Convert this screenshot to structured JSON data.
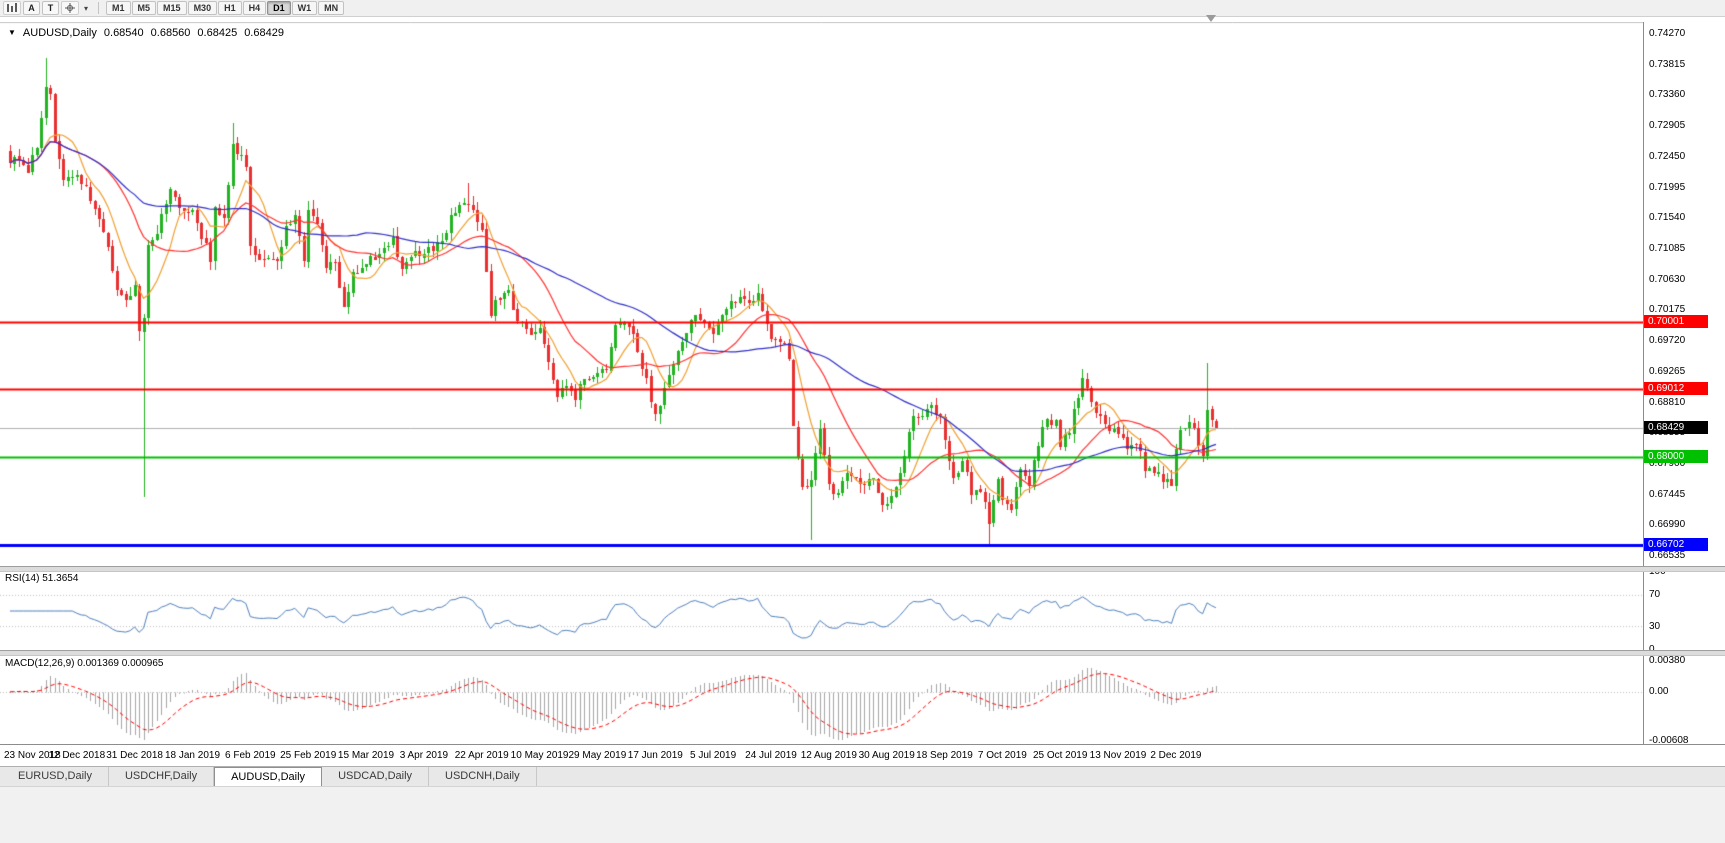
{
  "icons": {
    "collapse_glyph": "▼",
    "dropdown_glyph": "▾"
  },
  "toolbar": {
    "button_a": "A",
    "button_t": "T",
    "timeframes": [
      "M1",
      "M5",
      "M15",
      "M30",
      "H1",
      "H4",
      "D1",
      "W1",
      "MN"
    ],
    "active_timeframe": "D1"
  },
  "chart_header": {
    "symbol": "AUDUSD,Daily",
    "open": "0.68540",
    "high": "0.68560",
    "low": "0.68425",
    "close": "0.68429"
  },
  "price_axis": {
    "labels": [
      "0.74270",
      "0.73815",
      "0.73360",
      "0.72905",
      "0.72450",
      "0.71995",
      "0.71540",
      "0.71085",
      "0.70630",
      "0.70175",
      "0.69720",
      "0.69265",
      "0.68810",
      "0.68355",
      "0.67900",
      "0.67445",
      "0.66990",
      "0.66535"
    ]
  },
  "levels": [
    {
      "price": 0.70001,
      "text": "0.70001",
      "color": "#FF0000",
      "width": 2
    },
    {
      "price": 0.69012,
      "text": "0.69012",
      "color": "#FF0000",
      "width": 2
    },
    {
      "price": 0.68,
      "text": "0.68000",
      "color": "#00C000",
      "width": 2
    },
    {
      "price": 0.66702,
      "text": "0.66702",
      "color": "#0000FF",
      "width": 3
    }
  ],
  "current_price": {
    "price": 0.68429,
    "text": "0.68429",
    "bg": "#000000"
  },
  "rsi_panel": {
    "label": "RSI(14) 51.3654",
    "value": 51.3654,
    "color": "#4F81BD",
    "axis": [
      {
        "v": 100,
        "t": "100"
      },
      {
        "v": 70,
        "t": "70"
      },
      {
        "v": 30,
        "t": "30"
      },
      {
        "v": 0,
        "t": "0"
      }
    ]
  },
  "macd_panel": {
    "label": "MACD(12,26,9) 0.001369 0.000965",
    "macd_value": 0.001369,
    "signal_value": 0.000965,
    "hist_color": "#A6A6A6",
    "signal_color": "#FF0000",
    "axis": [
      {
        "v": 0.0038,
        "t": "0.00380"
      },
      {
        "v": 0,
        "t": "0.00"
      },
      {
        "v": -0.00608,
        "t": "-0.00608"
      }
    ]
  },
  "x_axis": {
    "first_label_day": 2,
    "label_step_days": 13,
    "labels": [
      "23 Nov 2018",
      "12 Dec 2018",
      "31 Dec 2018",
      "18 Jan 2019",
      "6 Feb 2019",
      "25 Feb 2019",
      "15 Mar 2019",
      "3 Apr 2019",
      "22 Apr 2019",
      "10 May 2019",
      "29 May 2019",
      "17 Jun 2019",
      "5 Jul 2019",
      "24 Jul 2019",
      "12 Aug 2019",
      "30 Aug 2019",
      "18 Sep 2019",
      "7 Oct 2019",
      "25 Oct 2019",
      "13 Nov 2019",
      "2 Dec 2019"
    ]
  },
  "tab_bar": {
    "tabs": [
      {
        "label": "EURUSD,Daily",
        "active": false
      },
      {
        "label": "USDCHF,Daily",
        "active": false
      },
      {
        "label": "AUDUSD,Daily",
        "active": true
      },
      {
        "label": "USDCAD,Daily",
        "active": false
      },
      {
        "label": "USDCNH,Daily",
        "active": false
      }
    ]
  },
  "chart_data": {
    "type": "candlestick",
    "symbol": "AUDUSD",
    "timeframe": "Daily",
    "candles_count": 272,
    "price_range_visible": [
      0.66535,
      0.7427
    ],
    "bull_color": "#22B222",
    "bear_color": "#E83030",
    "ma": [
      {
        "period": 8,
        "color": "#F0A030"
      },
      {
        "period": 20,
        "color": "#FF3232"
      },
      {
        "period": 50,
        "color": "#3030C8"
      }
    ],
    "rsi_period": 14,
    "macd_params": [
      12,
      26,
      9
    ],
    "anchors": [
      [
        0,
        0.7235
      ],
      [
        2,
        0.7242
      ],
      [
        4,
        0.7228
      ],
      [
        6,
        0.7258
      ],
      [
        8,
        0.7352
      ],
      [
        9,
        0.7338
      ],
      [
        10,
        0.727
      ],
      [
        12,
        0.7208
      ],
      [
        15,
        0.7222
      ],
      [
        17,
        0.7195
      ],
      [
        19,
        0.7172
      ],
      [
        22,
        0.7118
      ],
      [
        24,
        0.7048
      ],
      [
        26,
        0.7038
      ],
      [
        28,
        0.7052
      ],
      [
        29,
        0.699
      ],
      [
        30,
        0.7003
      ],
      [
        31,
        0.7112
      ],
      [
        33,
        0.7138
      ],
      [
        36,
        0.7198
      ],
      [
        38,
        0.7162
      ],
      [
        41,
        0.7168
      ],
      [
        43,
        0.7128
      ],
      [
        45,
        0.7092
      ],
      [
        46,
        0.7172
      ],
      [
        48,
        0.7152
      ],
      [
        50,
        0.7268
      ],
      [
        51,
        0.725
      ],
      [
        53,
        0.7238
      ],
      [
        54,
        0.7108
      ],
      [
        56,
        0.709
      ],
      [
        58,
        0.7096
      ],
      [
        60,
        0.7088
      ],
      [
        62,
        0.7138
      ],
      [
        64,
        0.7162
      ],
      [
        66,
        0.7092
      ],
      [
        67,
        0.7165
      ],
      [
        69,
        0.714
      ],
      [
        71,
        0.7082
      ],
      [
        73,
        0.7086
      ],
      [
        75,
        0.7018
      ],
      [
        77,
        0.7068
      ],
      [
        80,
        0.7086
      ],
      [
        82,
        0.7094
      ],
      [
        84,
        0.711
      ],
      [
        86,
        0.7122
      ],
      [
        88,
        0.7084
      ],
      [
        90,
        0.7094
      ],
      [
        93,
        0.7108
      ],
      [
        95,
        0.7102
      ],
      [
        97,
        0.7124
      ],
      [
        100,
        0.7168
      ],
      [
        103,
        0.7178
      ],
      [
        105,
        0.7148
      ],
      [
        106,
        0.7136
      ],
      [
        108,
        0.7016
      ],
      [
        110,
        0.7036
      ],
      [
        112,
        0.7048
      ],
      [
        114,
        0.7002
      ],
      [
        116,
        0.699
      ],
      [
        118,
        0.6984
      ],
      [
        119,
        0.6996
      ],
      [
        121,
        0.6944
      ],
      [
        123,
        0.689
      ],
      [
        125,
        0.6908
      ],
      [
        127,
        0.688
      ],
      [
        129,
        0.6922
      ],
      [
        132,
        0.692
      ],
      [
        134,
        0.6928
      ],
      [
        136,
        0.6988
      ],
      [
        139,
        0.6998
      ],
      [
        141,
        0.6958
      ],
      [
        143,
        0.6916
      ],
      [
        145,
        0.6858
      ],
      [
        146,
        0.6876
      ],
      [
        148,
        0.6924
      ],
      [
        150,
        0.6958
      ],
      [
        152,
        0.6984
      ],
      [
        154,
        0.7018
      ],
      [
        156,
        0.6996
      ],
      [
        158,
        0.6986
      ],
      [
        160,
        0.7008
      ],
      [
        162,
        0.703
      ],
      [
        164,
        0.7042
      ],
      [
        166,
        0.7028
      ],
      [
        168,
        0.7038
      ],
      [
        171,
        0.6978
      ],
      [
        173,
        0.6972
      ],
      [
        175,
        0.6952
      ],
      [
        176,
        0.6842
      ],
      [
        178,
        0.6756
      ],
      [
        180,
        0.6762
      ],
      [
        182,
        0.6838
      ],
      [
        184,
        0.6756
      ],
      [
        186,
        0.6748
      ],
      [
        188,
        0.6778
      ],
      [
        190,
        0.6772
      ],
      [
        192,
        0.6758
      ],
      [
        194,
        0.6772
      ],
      [
        196,
        0.6736
      ],
      [
        197,
        0.6728
      ],
      [
        199,
        0.6758
      ],
      [
        201,
        0.6808
      ],
      [
        203,
        0.6858
      ],
      [
        205,
        0.6862
      ],
      [
        207,
        0.6878
      ],
      [
        209,
        0.6858
      ],
      [
        210,
        0.6828
      ],
      [
        212,
        0.6772
      ],
      [
        214,
        0.6796
      ],
      [
        216,
        0.6746
      ],
      [
        218,
        0.6748
      ],
      [
        220,
        0.6708
      ],
      [
        222,
        0.6768
      ],
      [
        223,
        0.6732
      ],
      [
        225,
        0.6724
      ],
      [
        227,
        0.6788
      ],
      [
        229,
        0.6756
      ],
      [
        231,
        0.6822
      ],
      [
        233,
        0.6852
      ],
      [
        235,
        0.6848
      ],
      [
        236,
        0.6822
      ],
      [
        238,
        0.6842
      ],
      [
        240,
        0.6892
      ],
      [
        241,
        0.6912
      ],
      [
        243,
        0.6888
      ],
      [
        245,
        0.6858
      ],
      [
        247,
        0.6842
      ],
      [
        249,
        0.6838
      ],
      [
        251,
        0.6814
      ],
      [
        253,
        0.6824
      ],
      [
        255,
        0.6786
      ],
      [
        257,
        0.6772
      ],
      [
        259,
        0.6768
      ],
      [
        261,
        0.6764
      ],
      [
        262,
        0.6818
      ],
      [
        263,
        0.6844
      ],
      [
        265,
        0.6854
      ],
      [
        267,
        0.6824
      ],
      [
        268,
        0.6806
      ],
      [
        269,
        0.6878
      ],
      [
        270,
        0.6854
      ],
      [
        271,
        0.6843
      ]
    ],
    "overrides": {
      "lows": [
        [
          30,
          0.6741
        ],
        [
          180,
          0.6677
        ],
        [
          220,
          0.66702
        ]
      ],
      "highs": [
        [
          8,
          0.7392
        ],
        [
          50,
          0.7295
        ],
        [
          103,
          0.7206
        ],
        [
          164,
          0.7048
        ],
        [
          241,
          0.693
        ],
        [
          269,
          0.694
        ]
      ],
      "last": [
        0.6854,
        0.6856,
        0.68425,
        0.68429
      ]
    }
  }
}
